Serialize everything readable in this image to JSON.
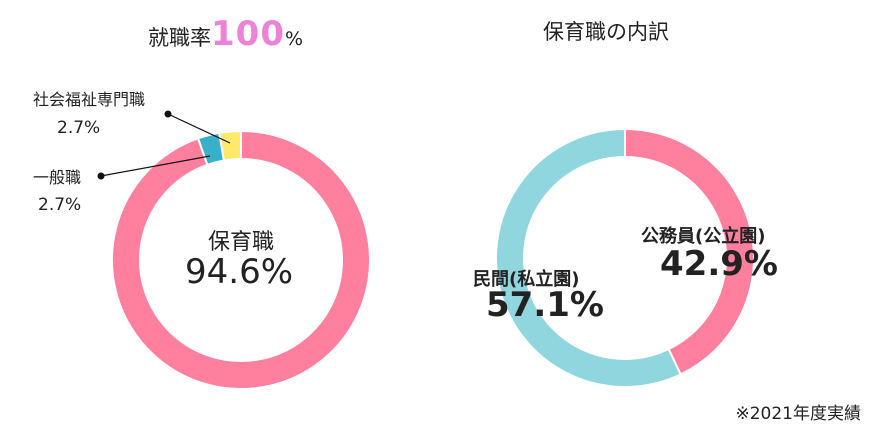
{
  "chart_data": [
    {
      "type": "pie",
      "title_prefix": "就職率",
      "title_highlight": "100",
      "title_suffix": "%",
      "categories": [
        "保育職",
        "一般職",
        "社会福祉専門職"
      ],
      "values": [
        94.6,
        2.7,
        2.7
      ],
      "value_labels": [
        "94.6%",
        "2.7%",
        "2.7%"
      ],
      "colors": [
        "#ff7f9e",
        "#3aafc8",
        "#ffe96b"
      ]
    },
    {
      "type": "pie",
      "title": "保育職の内訳",
      "categories": [
        "公務員(公立園)",
        "民間(私立園)"
      ],
      "values": [
        42.9,
        57.1
      ],
      "value_labels": [
        "42.9%",
        "57.1%"
      ],
      "colors": [
        "#ff7f9e",
        "#8fd6df"
      ]
    }
  ],
  "footnote": "※2021年度実績"
}
